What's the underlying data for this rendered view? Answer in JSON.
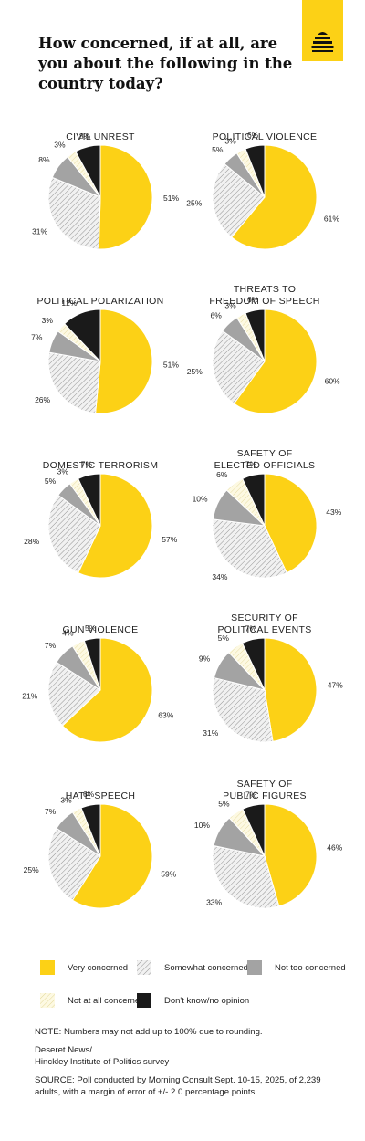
{
  "title": "How concerned, if at all, are you about the following in the country today?",
  "colors": {
    "very": "#fcd116",
    "somewhat": "#f1f1f1",
    "not_too": "#a3a3a3",
    "not_at_all": "#fdf9e2",
    "dont_know": "#1a1a1a",
    "brand": "#fcd116"
  },
  "logo_icon": "beehive-icon",
  "chart_data": [
    {
      "type": "pie",
      "title": "CIVIL UNREST",
      "labels": [
        "51%",
        "31%",
        "8%",
        "3%",
        "8%"
      ],
      "values": [
        51,
        31,
        8,
        3,
        8
      ]
    },
    {
      "type": "pie",
      "title": "POLITICAL VIOLENCE",
      "labels": [
        "61%",
        "25%",
        "5%",
        "3%",
        "6%"
      ],
      "values": [
        61,
        25,
        5,
        3,
        6
      ]
    },
    {
      "type": "pie",
      "title": "POLITICAL POLARIZATION",
      "labels": [
        "51%",
        "26%",
        "7%",
        "3%",
        "12%"
      ],
      "values": [
        51,
        26,
        7,
        3,
        12
      ]
    },
    {
      "type": "pie",
      "title": "THREATS TO\nFREEDOM OF SPEECH",
      "labels": [
        "60%",
        "25%",
        "6%",
        "3%",
        "6%"
      ],
      "values": [
        60,
        25,
        6,
        3,
        6
      ]
    },
    {
      "type": "pie",
      "title": "DOMESTIC TERRORISM",
      "labels": [
        "57%",
        "28%",
        "5%",
        "3%",
        "7%"
      ],
      "values": [
        57,
        28,
        5,
        3,
        7
      ]
    },
    {
      "type": "pie",
      "title": "SAFETY OF\nELECTED OFFICIALS",
      "labels": [
        "43%",
        "34%",
        "10%",
        "6%",
        "7%"
      ],
      "values": [
        43,
        34,
        10,
        6,
        7
      ]
    },
    {
      "type": "pie",
      "title": "GUN VIOLENCE",
      "labels": [
        "63%",
        "21%",
        "7%",
        "4%",
        "5%"
      ],
      "values": [
        63,
        21,
        7,
        4,
        5
      ]
    },
    {
      "type": "pie",
      "title": "SECURITY OF\nPOLITICAL EVENTS",
      "labels": [
        "47%",
        "31%",
        "9%",
        "5%",
        "7%"
      ],
      "values": [
        47,
        31,
        9,
        5,
        7
      ]
    },
    {
      "type": "pie",
      "title": "HATE SPEECH",
      "labels": [
        "59%",
        "25%",
        "7%",
        "3%",
        "6%"
      ],
      "values": [
        59,
        25,
        7,
        3,
        6
      ]
    },
    {
      "type": "pie",
      "title": "SAFETY OF\nPUBLIC FIGURES",
      "labels": [
        "46%",
        "33%",
        "10%",
        "5%",
        "7%"
      ],
      "values": [
        46,
        33,
        10,
        5,
        7
      ]
    }
  ],
  "legend": [
    {
      "key": "very",
      "label": "Very concerned"
    },
    {
      "key": "somewhat",
      "label": "Somewhat concerned"
    },
    {
      "key": "not_too",
      "label": "Not too concerned"
    },
    {
      "key": "not_at_all",
      "label": "Not at all concerned"
    },
    {
      "key": "dont_know",
      "label": "Don't know/no opinion"
    }
  ],
  "notes": {
    "rounding": "NOTE: Numbers may not add up to 100% due to rounding.",
    "credit_line1": "Deseret News/",
    "credit_line2": "Hinckley Institute of Politics survey",
    "source": "SOURCE: Poll conducted by Morning Consult Sept. 10-15, 2025, of 2,239 adults, with a margin of error of +/- 2.0 percentage points."
  }
}
